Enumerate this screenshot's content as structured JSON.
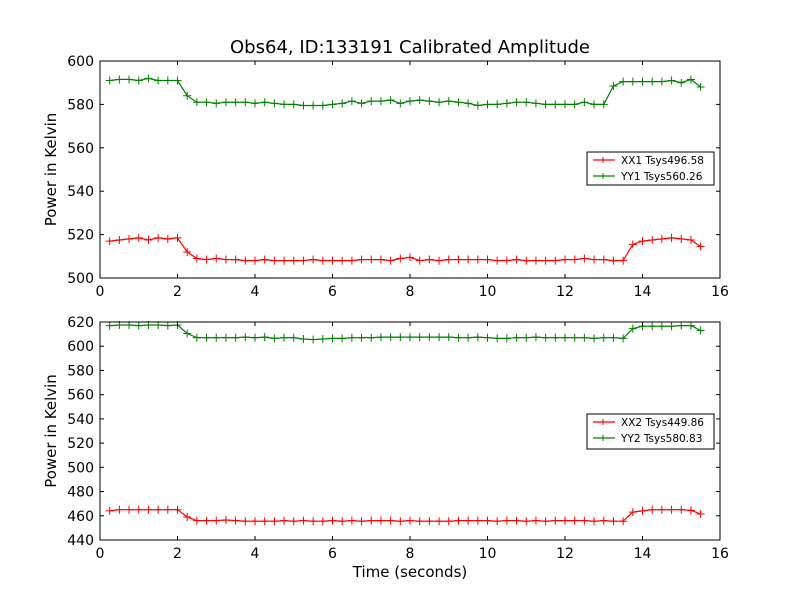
{
  "figure_title": "Obs64, ID:133191 Calibrated Amplitude",
  "colors": {
    "red": "#ff0000",
    "green": "#008000",
    "frame": "#000000",
    "background": "#ffffff"
  },
  "chart_data": [
    {
      "type": "line",
      "title": "Obs64, ID:133191 Calibrated Amplitude",
      "xlabel": "",
      "ylabel": "Power in Kelvin",
      "xlim": [
        0,
        16
      ],
      "ylim": [
        500,
        600
      ],
      "xticks": [
        0,
        2,
        4,
        6,
        8,
        10,
        12,
        14,
        16
      ],
      "yticks": [
        500,
        520,
        540,
        560,
        580,
        600
      ],
      "grid": false,
      "legend_position": "right",
      "marker": "+",
      "x": [
        0.25,
        0.5,
        0.75,
        1.0,
        1.25,
        1.5,
        1.75,
        2.0,
        2.25,
        2.5,
        2.75,
        3.0,
        3.25,
        3.5,
        3.75,
        4.0,
        4.25,
        4.5,
        4.75,
        5.0,
        5.25,
        5.5,
        5.75,
        6.0,
        6.25,
        6.5,
        6.75,
        7.0,
        7.25,
        7.5,
        7.75,
        8.0,
        8.25,
        8.5,
        8.75,
        9.0,
        9.25,
        9.5,
        9.75,
        10.0,
        10.25,
        10.5,
        10.75,
        11.0,
        11.25,
        11.5,
        11.75,
        12.0,
        12.25,
        12.5,
        12.75,
        13.0,
        13.25,
        13.5,
        13.75,
        14.0,
        14.25,
        14.5,
        14.75,
        15.0,
        15.25,
        15.5
      ],
      "series": [
        {
          "name": "XX1 Tsys496.58",
          "color": "#ff0000",
          "values": [
            517,
            517.5,
            518,
            518.5,
            517.5,
            518.5,
            518,
            518.5,
            512,
            509,
            508.5,
            509,
            508.5,
            508.5,
            508,
            508,
            508.5,
            508,
            508,
            508,
            508,
            508.5,
            508,
            508,
            508,
            508,
            508.5,
            508.5,
            508.5,
            508,
            509,
            509.5,
            508,
            508.5,
            508,
            508.5,
            508.5,
            508.5,
            508.5,
            508.5,
            508,
            508,
            508.5,
            508,
            508,
            508,
            508,
            508.5,
            508.5,
            509,
            508.5,
            508.5,
            508,
            508,
            515.5,
            517,
            517.5,
            518,
            518.5,
            518,
            517.5,
            514.5
          ]
        },
        {
          "name": "YY1 Tsys560.26",
          "color": "#008000",
          "values": [
            591,
            591.5,
            591.5,
            591,
            592,
            591,
            591,
            591,
            584,
            581,
            581,
            580.5,
            581,
            581,
            581,
            580.5,
            581,
            580.5,
            580,
            580,
            579.5,
            579.5,
            579.5,
            580,
            580.5,
            581.5,
            580.5,
            581.5,
            581.5,
            582,
            580.5,
            581.5,
            582,
            581.5,
            581,
            581.5,
            581,
            580.5,
            579.5,
            580,
            580,
            580.5,
            581,
            581,
            580.5,
            580,
            580,
            580,
            580,
            581,
            580,
            580,
            588.5,
            590.5,
            590.5,
            590.5,
            590.5,
            590.5,
            591,
            590,
            591.5,
            588
          ]
        }
      ]
    },
    {
      "type": "line",
      "title": "",
      "xlabel": "Time (seconds)",
      "ylabel": "Power in Kelvin",
      "xlim": [
        0,
        16
      ],
      "ylim": [
        440,
        620
      ],
      "xticks": [
        0,
        2,
        4,
        6,
        8,
        10,
        12,
        14,
        16
      ],
      "yticks": [
        440,
        460,
        480,
        500,
        520,
        540,
        560,
        580,
        600,
        620
      ],
      "grid": false,
      "legend_position": "right",
      "marker": "+",
      "x": [
        0.25,
        0.5,
        0.75,
        1.0,
        1.25,
        1.5,
        1.75,
        2.0,
        2.25,
        2.5,
        2.75,
        3.0,
        3.25,
        3.5,
        3.75,
        4.0,
        4.25,
        4.5,
        4.75,
        5.0,
        5.25,
        5.5,
        5.75,
        6.0,
        6.25,
        6.5,
        6.75,
        7.0,
        7.25,
        7.5,
        7.75,
        8.0,
        8.25,
        8.5,
        8.75,
        9.0,
        9.25,
        9.5,
        9.75,
        10.0,
        10.25,
        10.5,
        10.75,
        11.0,
        11.25,
        11.5,
        11.75,
        12.0,
        12.25,
        12.5,
        12.75,
        13.0,
        13.25,
        13.5,
        13.75,
        14.0,
        14.25,
        14.5,
        14.75,
        15.0,
        15.25,
        15.5
      ],
      "series": [
        {
          "name": "XX2 Tsys449.86",
          "color": "#ff0000",
          "values": [
            464,
            465,
            465,
            465,
            465,
            465,
            465,
            465,
            459,
            456,
            456,
            456,
            456.5,
            456,
            455.5,
            455.5,
            455.5,
            455.5,
            456,
            455.5,
            456,
            455.5,
            455.5,
            456,
            455.5,
            456,
            455.5,
            456,
            456,
            456,
            455.5,
            456,
            455.5,
            455.5,
            455.5,
            455.5,
            456,
            456,
            456,
            456,
            455.5,
            456,
            456,
            455.5,
            456,
            455.5,
            456,
            456,
            456,
            456,
            455.5,
            456,
            455.5,
            455.5,
            463,
            464,
            465,
            465,
            465,
            465,
            464.5,
            461.5
          ]
        },
        {
          "name": "YY2 Tsys580.83",
          "color": "#008000",
          "values": [
            617,
            617.5,
            617.5,
            617,
            617.5,
            617.5,
            617,
            617.5,
            610.5,
            607,
            607,
            607,
            607,
            607,
            607.5,
            607,
            607.5,
            606.5,
            607,
            607,
            606,
            605.5,
            606,
            606.5,
            606.5,
            607,
            607,
            607,
            607.5,
            607.5,
            607.5,
            607.5,
            607.5,
            607.5,
            607.5,
            607.5,
            607,
            607,
            607.5,
            607,
            606.5,
            606.5,
            607,
            607,
            607.5,
            607,
            607,
            607,
            607,
            607,
            606.5,
            607,
            607,
            606.5,
            614.5,
            616.5,
            616.5,
            616.5,
            616.5,
            617,
            617,
            613
          ]
        }
      ]
    }
  ]
}
